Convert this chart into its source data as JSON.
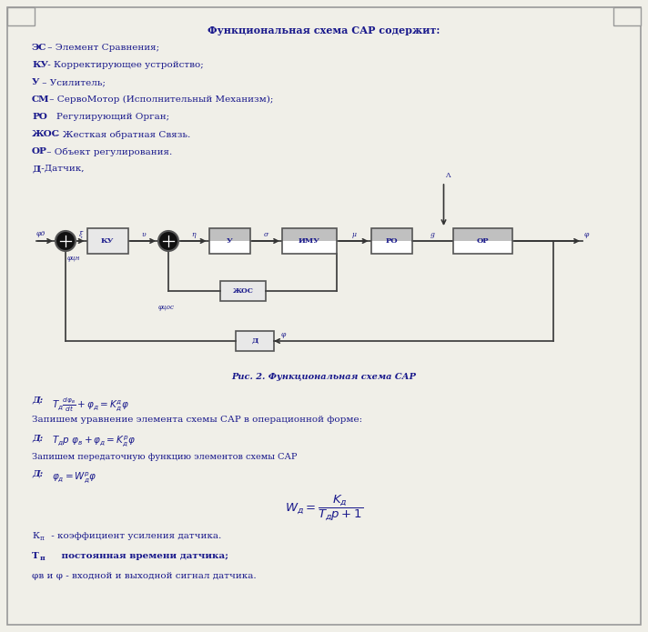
{
  "bg_color": "#f0efe8",
  "text_color": "#1a1a8c",
  "title": "Функциональная схема САР содержит:",
  "lines": [
    [
      "ЭС",
      " – Элемент Сравнения;"
    ],
    [
      "КУ",
      " - Корректирующее устройство;"
    ],
    [
      "У",
      " – Усилитель;"
    ],
    [
      "СМ",
      " – СервоМотор (Исполнительный Механизм);"
    ],
    [
      "РО",
      "    Регулирующий Орган;"
    ],
    [
      "ЖОС",
      " – Жесткая обратная Связь."
    ],
    [
      "ОР",
      " – Объект регулирования."
    ],
    [
      "Д",
      " -Датчик,"
    ]
  ],
  "fig_caption": "Рис. 2. Функциональная схема САР",
  "eq1_label": "Д:",
  "eq1_math": "$T_{д}\\frac{d\\varphi_{в}}{dt} + \\varphi_{д} = K_{д}^{д}\\varphi$",
  "eq2_text": "Запишем уравнение элемента схемы САР в операционной форме:",
  "eq3_label": "Д:",
  "eq3_math": "$T_{д}p\\ \\varphi_{в}+\\varphi_{д}=K_{д}^{р}\\varphi$",
  "eq4_text": "Запишем передаточную функцию элементов схемы САР",
  "eq5_label": "Д:",
  "eq5_math": "$\\varphi_{д}=W_{д}^{р}\\varphi$",
  "eq6_math": "$W_{д}=\\dfrac{K_{д}}{T_{д}p+1}$",
  "desc1": [
    "К",
    "п",
    " - коэффициент усиления датчика."
  ],
  "desc2": [
    "Т",
    "п",
    "    постоянная времени датчика;"
  ],
  "desc3": "φв и φ - входной и выходной сигнал датчика."
}
